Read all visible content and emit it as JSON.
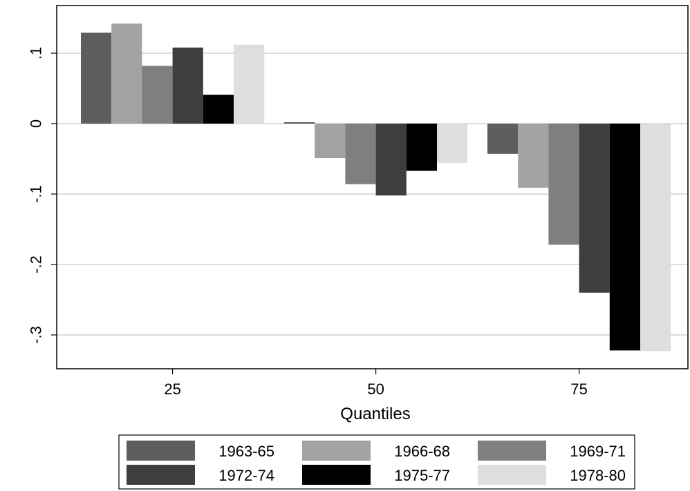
{
  "chart_data": {
    "type": "bar",
    "title": "",
    "xlabel": "Quantiles",
    "ylabel": "",
    "categories": [
      "25",
      "50",
      "75"
    ],
    "ylim": [
      -0.35,
      0.17
    ],
    "yticks": [
      {
        "value": 0.1,
        "label": ".1"
      },
      {
        "value": 0,
        "label": "0"
      },
      {
        "value": -0.1,
        "label": "-.1"
      },
      {
        "value": -0.2,
        "label": "-.2"
      },
      {
        "value": -0.3,
        "label": "-.3"
      }
    ],
    "grid": true,
    "legend": {
      "position": "bottom",
      "columns": 3
    },
    "series": [
      {
        "name": "1963-65",
        "color": "#5e5e5e",
        "values": [
          0.129,
          0.002,
          -0.043
        ]
      },
      {
        "name": "1966-68",
        "color": "#a2a2a2",
        "values": [
          0.142,
          -0.049,
          -0.091
        ]
      },
      {
        "name": "1969-71",
        "color": "#7f7f7f",
        "values": [
          0.082,
          -0.086,
          -0.172
        ]
      },
      {
        "name": "1972-74",
        "color": "#3e3e3e",
        "values": [
          0.108,
          -0.102,
          -0.24
        ]
      },
      {
        "name": "1975-77",
        "color": "#000000",
        "values": [
          0.041,
          -0.067,
          -0.322
        ]
      },
      {
        "name": "1978-80",
        "color": "#dedede",
        "values": [
          0.112,
          -0.056,
          -0.323
        ]
      }
    ]
  }
}
